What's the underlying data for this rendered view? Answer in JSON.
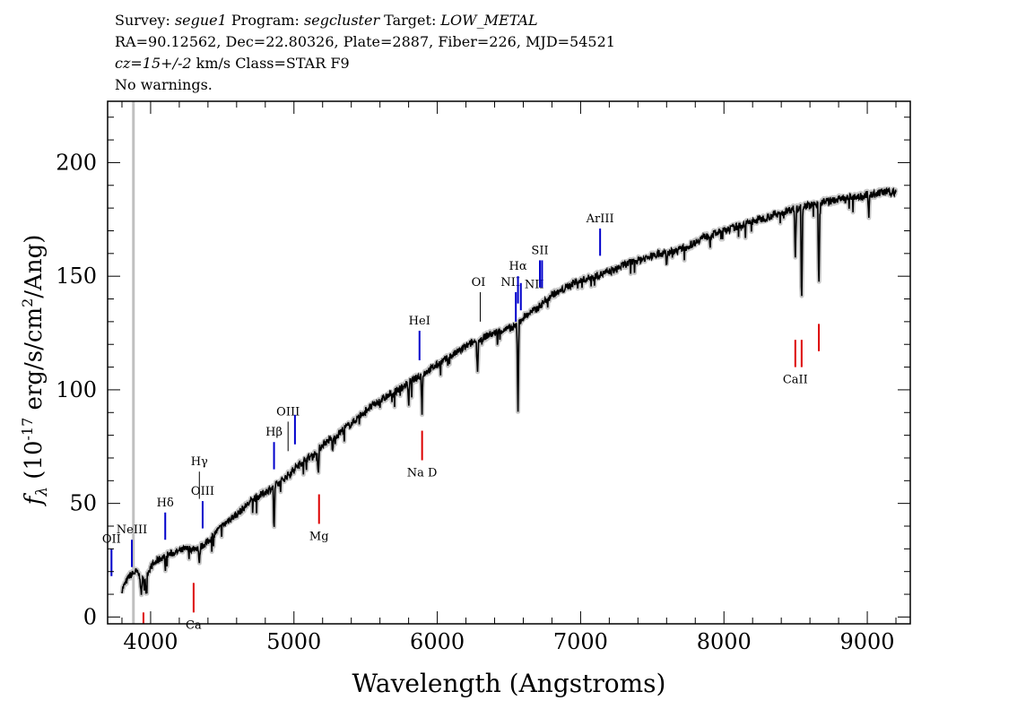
{
  "header": {
    "line1": {
      "survey_label": "Survey: ",
      "survey": "segue1",
      "program_label": " Program: ",
      "program": "segcluster",
      "target_label": " Target: ",
      "target": "LOW_METAL"
    },
    "line2": "RA=90.12562, Dec=22.80326, Plate=2887, Fiber=226, MJD=54521",
    "line3": {
      "cz_value": "cz=15+/-2",
      "cz_rest": " km/s Class=STAR F9"
    },
    "line4": "No warnings."
  },
  "colors": {
    "spectrum": "#000000",
    "error_band": "#c8c8c8",
    "emission_line": "#0000cc",
    "absorption_line": "#dd0000",
    "sky_line": "#000000",
    "vertical_marker": "#c0c0c0"
  },
  "chart_data": {
    "type": "line",
    "xlabel": "Wavelength (Angstroms)",
    "ylabel": "f_λ (10^-17 erg/s/cm^2/Ang)",
    "xlim": [
      3700,
      9300
    ],
    "ylim": [
      -3,
      227
    ],
    "x_ticks": [
      4000,
      5000,
      6000,
      7000,
      8000,
      9000
    ],
    "y_ticks": [
      0,
      50,
      100,
      150,
      200
    ],
    "grid": false,
    "vertical_marker_x": 3880,
    "spectrum": {
      "x": [
        3800,
        3850,
        3900,
        3950,
        4000,
        4050,
        4100,
        4150,
        4200,
        4250,
        4300,
        4350,
        4400,
        4450,
        4500,
        4550,
        4600,
        4650,
        4700,
        4750,
        4800,
        4850,
        4900,
        4950,
        5000,
        5050,
        5100,
        5150,
        5200,
        5250,
        5300,
        5350,
        5400,
        5450,
        5500,
        5550,
        5600,
        5650,
        5700,
        5750,
        5800,
        5850,
        5900,
        5950,
        6000,
        6050,
        6100,
        6150,
        6200,
        6250,
        6300,
        6350,
        6400,
        6450,
        6500,
        6550,
        6600,
        6650,
        6700,
        6750,
        6800,
        6850,
        6900,
        6950,
        7000,
        7050,
        7100,
        7150,
        7200,
        7250,
        7300,
        7350,
        7400,
        7450,
        7500,
        7550,
        7600,
        7650,
        7700,
        7750,
        7800,
        7850,
        7900,
        7950,
        8000,
        8050,
        8100,
        8150,
        8200,
        8250,
        8300,
        8350,
        8400,
        8450,
        8500,
        8550,
        8600,
        8650,
        8700,
        8750,
        8800,
        8850,
        8900,
        8950,
        9000,
        9050,
        9100,
        9150,
        9200
      ],
      "y": [
        12,
        18,
        20,
        16,
        22,
        25,
        27,
        28,
        29,
        30,
        30,
        31,
        33,
        37,
        40,
        43,
        45,
        48,
        51,
        53,
        55,
        57,
        59,
        62,
        65,
        68,
        70,
        72,
        76,
        78,
        80,
        83,
        85,
        88,
        91,
        93,
        95,
        97,
        99,
        101,
        103,
        105,
        107,
        109,
        111,
        113,
        115,
        117,
        119,
        121,
        122,
        124,
        125,
        126,
        127,
        128,
        132,
        134,
        136,
        139,
        142,
        143,
        145,
        147,
        148,
        149,
        150,
        151,
        152,
        153,
        155,
        156,
        157,
        158,
        159,
        160,
        160,
        161,
        162,
        163,
        165,
        167,
        168,
        169,
        170,
        171,
        172,
        173,
        174,
        175,
        176,
        177,
        178,
        179,
        180,
        181,
        181,
        182,
        183,
        183,
        184,
        184,
        185,
        185,
        186,
        186,
        187,
        187,
        187
      ]
    },
    "absorption_dips": [
      {
        "x": 3934,
        "depth": 9
      },
      {
        "x": 3969,
        "depth": 8
      },
      {
        "x": 4102,
        "depth": 6
      },
      {
        "x": 4340,
        "depth": 8
      },
      {
        "x": 4861,
        "depth": 20
      },
      {
        "x": 5170,
        "depth": 12
      },
      {
        "x": 5270,
        "depth": 6
      },
      {
        "x": 5800,
        "depth": 10
      },
      {
        "x": 5893,
        "depth": 15
      },
      {
        "x": 6280,
        "depth": 14
      },
      {
        "x": 6563,
        "depth": 40
      },
      {
        "x": 7600,
        "depth": 6
      },
      {
        "x": 8498,
        "depth": 22
      },
      {
        "x": 8542,
        "depth": 45
      },
      {
        "x": 8662,
        "depth": 38
      },
      {
        "x": 9010,
        "depth": 10
      }
    ],
    "line_labels": [
      {
        "label": "OII",
        "x": 3727,
        "kind": "emission",
        "y0": 18,
        "y1": 30
      },
      {
        "label": "NeIII",
        "x": 3869,
        "kind": "emission",
        "y0": 22,
        "y1": 34
      },
      {
        "label": "Hδ",
        "x": 4102,
        "kind": "emission",
        "y0": 34,
        "y1": 46
      },
      {
        "label": "Hγ",
        "x": 4340,
        "kind": "sky",
        "y0": 52,
        "y1": 64
      },
      {
        "label": "OIII",
        "x": 4363,
        "kind": "emission",
        "y0": 39,
        "y1": 51
      },
      {
        "label": "Hβ",
        "x": 4861,
        "kind": "emission",
        "y0": 65,
        "y1": 77
      },
      {
        "label": "OIII",
        "x": 4959,
        "kind": "sky",
        "y0": 73,
        "y1": 86
      },
      {
        "label": "",
        "x": 5007,
        "kind": "emission",
        "y0": 76,
        "y1": 89
      },
      {
        "label": "HeI",
        "x": 5876,
        "kind": "emission",
        "y0": 113,
        "y1": 126
      },
      {
        "label": "OI",
        "x": 6300,
        "kind": "sky",
        "y0": 130,
        "y1": 143
      },
      {
        "label": "NII",
        "x": 6548,
        "kind": "emission",
        "y0": 130,
        "y1": 143
      },
      {
        "label": "Hα",
        "x": 6563,
        "kind": "emission",
        "y0": 138,
        "y1": 150
      },
      {
        "label": "",
        "x": 6583,
        "kind": "emission",
        "y0": 135,
        "y1": 147
      },
      {
        "label": "NII",
        "x": 6583,
        "kind": "label-only",
        "y0": 0,
        "y1": 0
      },
      {
        "label": "SII",
        "x": 6716,
        "kind": "emission",
        "y0": 145,
        "y1": 157
      },
      {
        "label": "",
        "x": 6731,
        "kind": "emission",
        "y0": 145,
        "y1": 157
      },
      {
        "label": "ArIII",
        "x": 7136,
        "kind": "emission",
        "y0": 159,
        "y1": 171
      },
      {
        "label": "Ca",
        "x": 4300,
        "kind": "absorption",
        "y0": 2,
        "y1": 15
      },
      {
        "label": "",
        "x": 3950,
        "kind": "absorption",
        "y0": -3,
        "y1": 2
      },
      {
        "label": "Mg",
        "x": 5175,
        "kind": "absorption",
        "y0": 41,
        "y1": 54
      },
      {
        "label": "Na D",
        "x": 5894,
        "kind": "absorption",
        "y0": 69,
        "y1": 82
      },
      {
        "label": "CaII",
        "x": 8498,
        "kind": "absorption",
        "y0": 110,
        "y1": 122
      },
      {
        "label": "",
        "x": 8542,
        "kind": "absorption",
        "y0": 110,
        "y1": 122
      },
      {
        "label": "",
        "x": 8662,
        "kind": "absorption",
        "y0": 117,
        "y1": 129
      }
    ]
  }
}
